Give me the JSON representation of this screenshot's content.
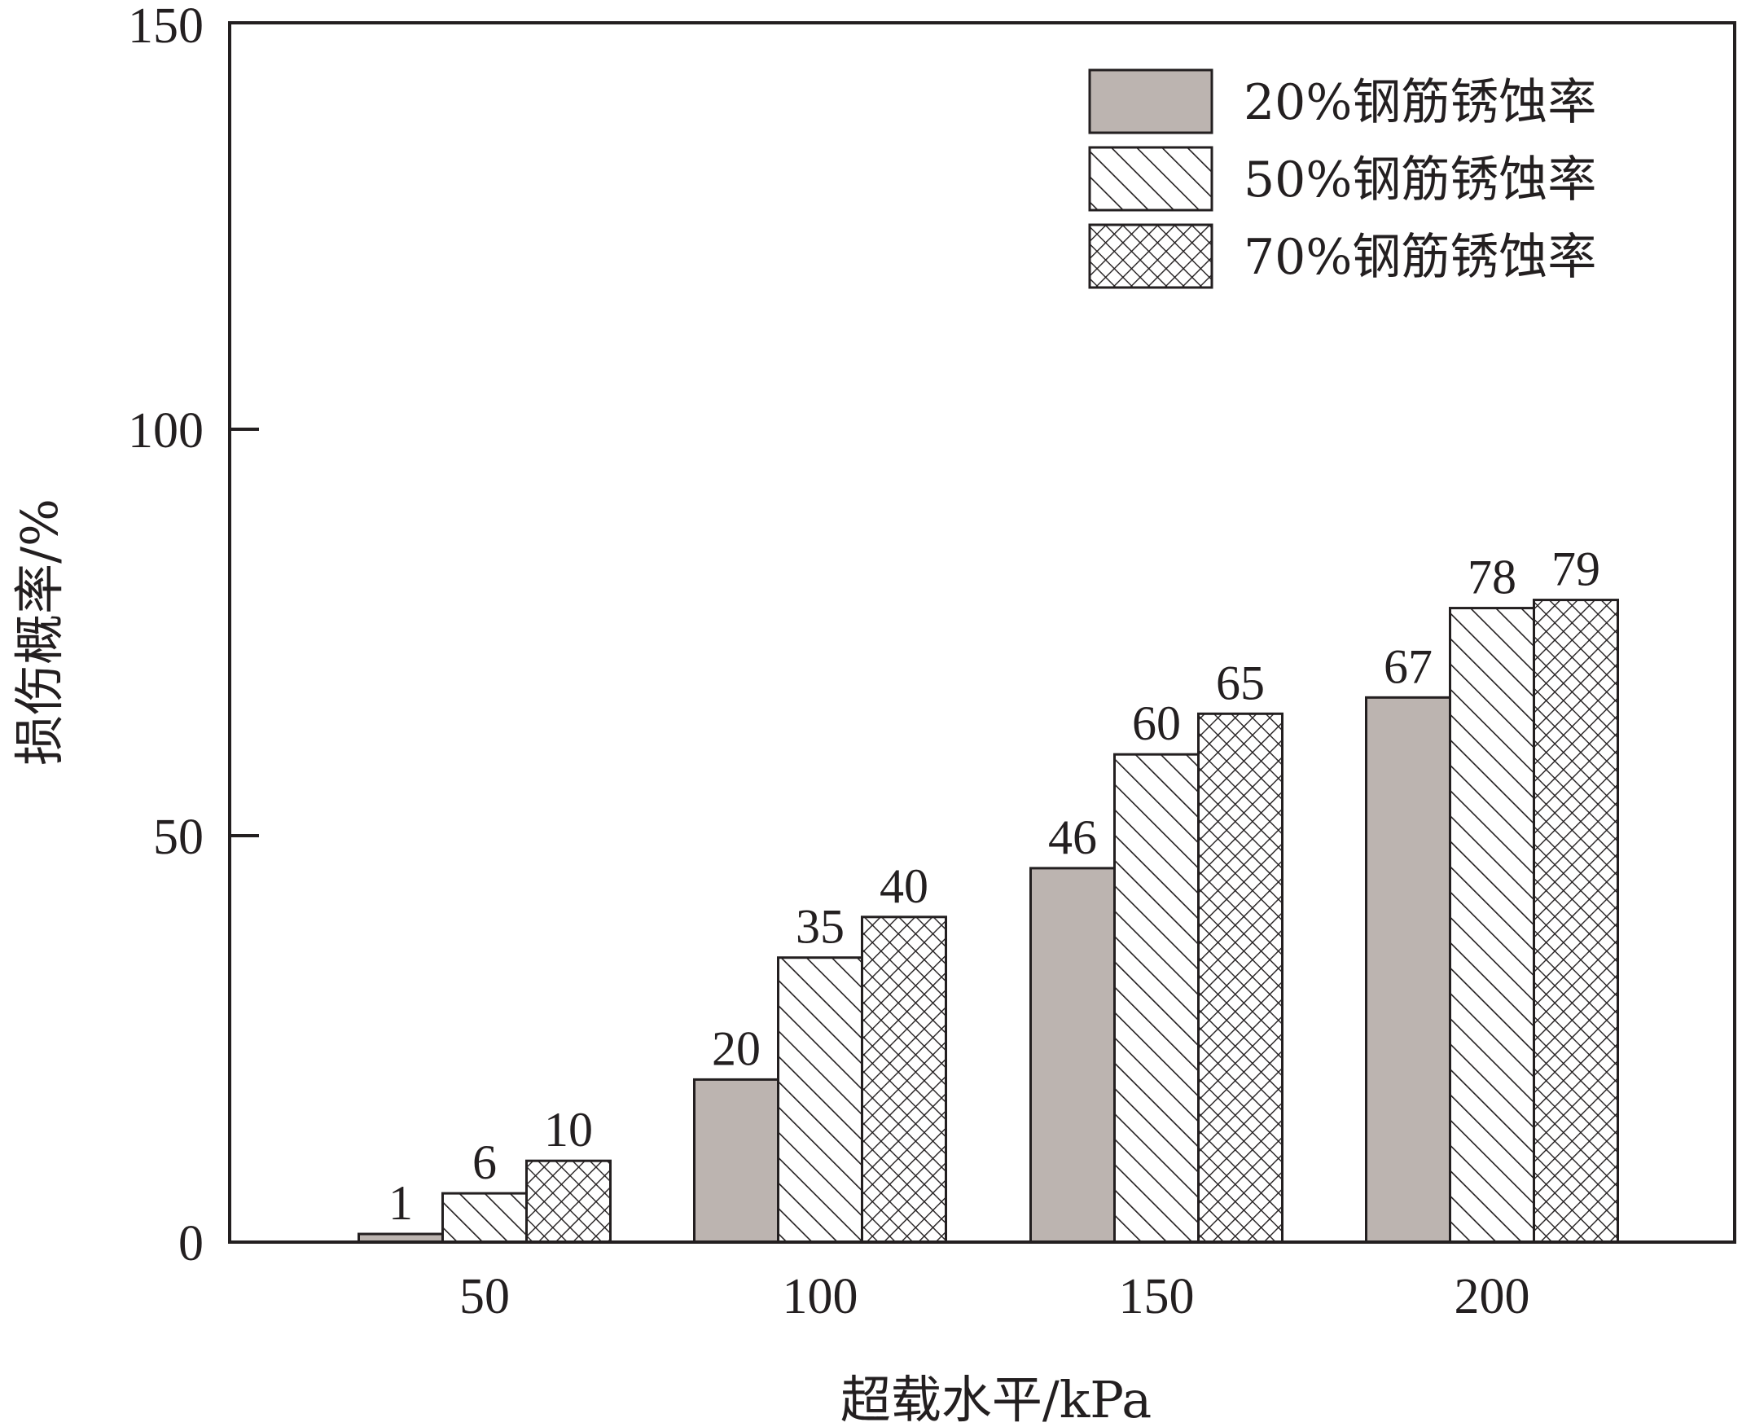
{
  "chart_data": {
    "type": "bar",
    "categories": [
      "50",
      "100",
      "150",
      "200"
    ],
    "series": [
      {
        "name": "20%钢筋锈蚀率",
        "values": [
          1,
          20,
          46,
          67
        ],
        "fill": "#bcb4b0",
        "pattern": "solid"
      },
      {
        "name": "50%钢筋锈蚀率",
        "values": [
          6,
          35,
          60,
          78
        ],
        "fill": "#ffffff",
        "pattern": "hatch"
      },
      {
        "name": "70%钢筋锈蚀率",
        "values": [
          10,
          40,
          65,
          79
        ],
        "fill": "#ffffff",
        "pattern": "crosshatch"
      }
    ],
    "data_labels": [
      [
        "1",
        "20",
        "46",
        "67"
      ],
      [
        "6",
        "35",
        "60",
        "78"
      ],
      [
        "10",
        "40",
        "65",
        "79"
      ]
    ],
    "xlabel": "超载水平/kPa",
    "ylabel": "损伤概率/%",
    "ylim": [
      0,
      150
    ],
    "yticks": [
      0,
      50,
      100,
      150
    ],
    "ytick_labels": [
      "0",
      "50",
      "100",
      "150"
    ],
    "grid": false,
    "legend_position": "top-right",
    "colors": {
      "axis": "#231f20",
      "solid_bar": "#bcb4b0",
      "pattern_line": "#231f20"
    }
  }
}
